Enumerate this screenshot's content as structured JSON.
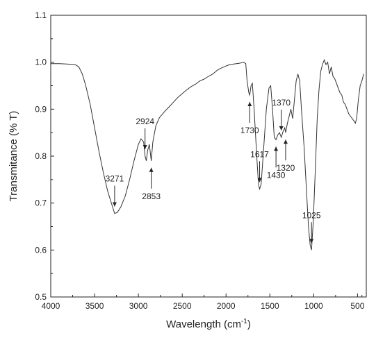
{
  "chart_data": {
    "type": "line",
    "title": "",
    "xlabel": "Wavelength (cm",
    "xlabel_sup": "-1",
    "xlabel_close": ")",
    "ylabel": "Transmitance (% T)",
    "xlim": [
      4000,
      400
    ],
    "x_reversed": true,
    "ylim": [
      0.5,
      1.1
    ],
    "grid": false,
    "x_ticks": [
      4000,
      3500,
      3000,
      2500,
      2000,
      1500,
      1000,
      500
    ],
    "x_tick_labels": [
      "4000",
      "3500",
      "3000",
      "2500",
      "2000",
      "1500",
      "1000",
      "500"
    ],
    "y_ticks": [
      0.5,
      0.6,
      0.7,
      0.8,
      0.9,
      1.0,
      1.1
    ],
    "y_tick_labels": [
      "0.5",
      "0.6",
      "0.7",
      "0.8",
      "0.9",
      "1.0",
      "1.1"
    ],
    "series": [
      {
        "color": "#333333",
        "points": [
          [
            4000,
            0.997
          ],
          [
            3900,
            0.997
          ],
          [
            3800,
            0.996
          ],
          [
            3720,
            0.995
          ],
          [
            3680,
            0.99
          ],
          [
            3640,
            0.975
          ],
          [
            3600,
            0.95
          ],
          [
            3550,
            0.91
          ],
          [
            3500,
            0.86
          ],
          [
            3450,
            0.81
          ],
          [
            3400,
            0.765
          ],
          [
            3350,
            0.725
          ],
          [
            3300,
            0.695
          ],
          [
            3271,
            0.678
          ],
          [
            3240,
            0.68
          ],
          [
            3200,
            0.692
          ],
          [
            3150,
            0.715
          ],
          [
            3100,
            0.75
          ],
          [
            3050,
            0.79
          ],
          [
            3000,
            0.825
          ],
          [
            2970,
            0.837
          ],
          [
            2940,
            0.83
          ],
          [
            2924,
            0.8
          ],
          [
            2910,
            0.79
          ],
          [
            2895,
            0.812
          ],
          [
            2875,
            0.825
          ],
          [
            2853,
            0.79
          ],
          [
            2835,
            0.83
          ],
          [
            2800,
            0.865
          ],
          [
            2760,
            0.882
          ],
          [
            2700,
            0.895
          ],
          [
            2650,
            0.905
          ],
          [
            2600,
            0.915
          ],
          [
            2550,
            0.925
          ],
          [
            2500,
            0.933
          ],
          [
            2450,
            0.941
          ],
          [
            2400,
            0.948
          ],
          [
            2350,
            0.953
          ],
          [
            2300,
            0.96
          ],
          [
            2250,
            0.964
          ],
          [
            2200,
            0.97
          ],
          [
            2150,
            0.975
          ],
          [
            2100,
            0.983
          ],
          [
            2050,
            0.988
          ],
          [
            2000,
            0.992
          ],
          [
            1960,
            0.995
          ],
          [
            1920,
            0.996
          ],
          [
            1880,
            0.997
          ],
          [
            1840,
            0.998
          ],
          [
            1800,
            1.0
          ],
          [
            1775,
            0.997
          ],
          [
            1760,
            0.96
          ],
          [
            1740,
            0.935
          ],
          [
            1730,
            0.93
          ],
          [
            1715,
            0.95
          ],
          [
            1700,
            0.955
          ],
          [
            1680,
            0.9
          ],
          [
            1650,
            0.8
          ],
          [
            1630,
            0.74
          ],
          [
            1617,
            0.73
          ],
          [
            1600,
            0.74
          ],
          [
            1570,
            0.82
          ],
          [
            1540,
            0.9
          ],
          [
            1510,
            0.945
          ],
          [
            1490,
            0.95
          ],
          [
            1470,
            0.9
          ],
          [
            1450,
            0.84
          ],
          [
            1430,
            0.835
          ],
          [
            1410,
            0.845
          ],
          [
            1390,
            0.85
          ],
          [
            1370,
            0.84
          ],
          [
            1350,
            0.852
          ],
          [
            1330,
            0.86
          ],
          [
            1320,
            0.85
          ],
          [
            1300,
            0.87
          ],
          [
            1280,
            0.885
          ],
          [
            1260,
            0.9
          ],
          [
            1240,
            0.88
          ],
          [
            1220,
            0.92
          ],
          [
            1200,
            0.96
          ],
          [
            1180,
            0.975
          ],
          [
            1160,
            0.96
          ],
          [
            1140,
            0.9
          ],
          [
            1110,
            0.82
          ],
          [
            1080,
            0.72
          ],
          [
            1060,
            0.65
          ],
          [
            1040,
            0.61
          ],
          [
            1025,
            0.6
          ],
          [
            1005,
            0.66
          ],
          [
            980,
            0.78
          ],
          [
            960,
            0.88
          ],
          [
            940,
            0.94
          ],
          [
            920,
            0.98
          ],
          [
            900,
            0.995
          ],
          [
            880,
            1.005
          ],
          [
            860,
            0.995
          ],
          [
            840,
            1.0
          ],
          [
            820,
            0.975
          ],
          [
            800,
            0.99
          ],
          [
            780,
            0.97
          ],
          [
            760,
            0.965
          ],
          [
            740,
            0.955
          ],
          [
            720,
            0.945
          ],
          [
            700,
            0.935
          ],
          [
            680,
            0.93
          ],
          [
            660,
            0.915
          ],
          [
            640,
            0.91
          ],
          [
            620,
            0.9
          ],
          [
            600,
            0.89
          ],
          [
            580,
            0.885
          ],
          [
            560,
            0.88
          ],
          [
            540,
            0.875
          ],
          [
            525,
            0.87
          ],
          [
            510,
            0.88
          ],
          [
            490,
            0.92
          ],
          [
            470,
            0.95
          ],
          [
            450,
            0.96
          ],
          [
            430,
            0.975
          ]
        ]
      }
    ],
    "annotations": [
      {
        "label": "3271",
        "x": 3271,
        "y": 0.678,
        "direction": "down"
      },
      {
        "label": "2924",
        "x": 2924,
        "y": 0.8,
        "direction": "down"
      },
      {
        "label": "2853",
        "x": 2853,
        "y": 0.79,
        "direction": "up"
      },
      {
        "label": "1730",
        "x": 1730,
        "y": 0.93,
        "direction": "up"
      },
      {
        "label": "1617",
        "x": 1617,
        "y": 0.73,
        "direction": "down"
      },
      {
        "label": "1430",
        "x": 1430,
        "y": 0.835,
        "direction": "up"
      },
      {
        "label": "1370",
        "x": 1370,
        "y": 0.84,
        "direction": "down"
      },
      {
        "label": "1320",
        "x": 1320,
        "y": 0.85,
        "direction": "up"
      },
      {
        "label": "1025",
        "x": 1025,
        "y": 0.6,
        "direction": "down"
      }
    ]
  }
}
